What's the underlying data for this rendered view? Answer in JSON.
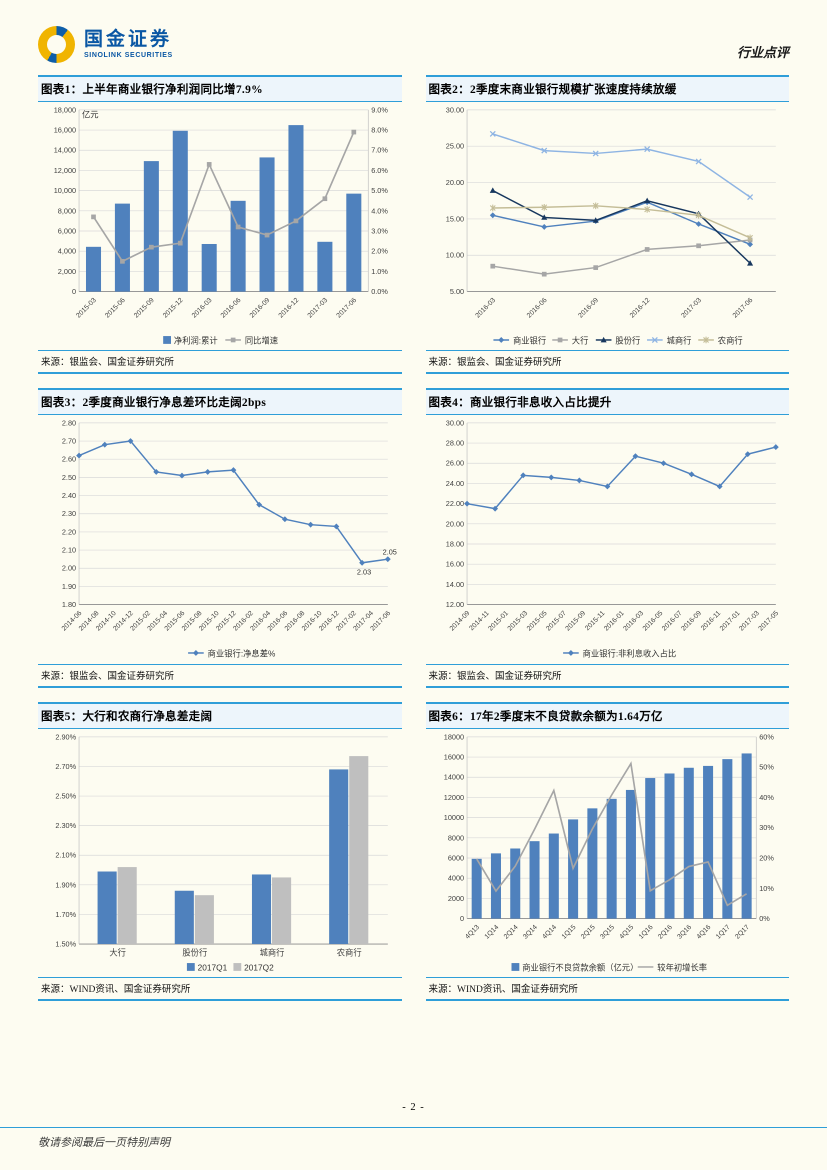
{
  "page": {
    "page_number": "- 2 -",
    "footer_note": "敬请参阅最后一页特别声明",
    "background": "#fdfcf1",
    "accent_blue": "#2f9ed8"
  },
  "header": {
    "brand_cn": "国金证券",
    "brand_en": "SINOLINK SECURITIES",
    "doc_type": "行业点评",
    "brand_color": "#0a57a4",
    "logo_gold": "#f0b400",
    "logo_blue": "#0e5ea8"
  },
  "chart_data": [
    {
      "type": "bar+line",
      "title": "图表1：上半年商业银行净利润同比增7.9%",
      "source": "来源：银监会、国金证券研究所",
      "categories": [
        "2015-03",
        "2015-06",
        "2015-09",
        "2015-12",
        "2016-03",
        "2016-06",
        "2016-09",
        "2016-12",
        "2017-03",
        "2017-06"
      ],
      "bar": {
        "name": "净利润:累计",
        "values": [
          4436,
          8715,
          12925,
          15926,
          4716,
          8991,
          13290,
          16490,
          4933,
          9703
        ],
        "color": "#4f81bd"
      },
      "line": {
        "name": "同比增速",
        "values": [
          3.7,
          1.5,
          2.2,
          2.4,
          6.3,
          3.2,
          2.8,
          3.5,
          4.6,
          7.9
        ],
        "color": "#a6a6a6",
        "marker": "square",
        "axis": "right"
      },
      "y_left": {
        "min": 0,
        "max": 18000,
        "step": 2000,
        "format": "comma",
        "title": "亿元"
      },
      "y_right": {
        "min": 0,
        "max": 9,
        "step": 1,
        "format": "pct1"
      },
      "legend_position": "bottom",
      "grid": true
    },
    {
      "type": "line-multi",
      "title": "图表2：2季度末商业银行规模扩张速度持续放缓",
      "source": "来源：银监会、国金证券研究所",
      "categories": [
        "2016-03",
        "2016-06",
        "2016-09",
        "2016-12",
        "2017-03",
        "2017-06"
      ],
      "series": [
        {
          "name": "商业银行",
          "values": [
            15.5,
            13.9,
            14.7,
            17.3,
            14.3,
            11.5
          ],
          "color": "#4f81bd",
          "marker": "diamond"
        },
        {
          "name": "大行",
          "values": [
            8.5,
            7.4,
            8.3,
            10.8,
            11.3,
            12.1
          ],
          "color": "#a6a6a6",
          "marker": "square"
        },
        {
          "name": "股份行",
          "values": [
            18.9,
            15.2,
            14.8,
            17.5,
            15.7,
            8.9
          ],
          "color": "#17375e",
          "marker": "triangle"
        },
        {
          "name": "城商行",
          "values": [
            26.7,
            24.4,
            24.0,
            24.6,
            22.9,
            18.0
          ],
          "color": "#8eb4e3",
          "marker": "x"
        },
        {
          "name": "农商行",
          "values": [
            16.5,
            16.6,
            16.8,
            16.3,
            15.5,
            12.4
          ],
          "color": "#c4bd97",
          "marker": "star"
        }
      ],
      "y_left": {
        "min": 5,
        "max": 30,
        "step": 5,
        "format": "2dp"
      },
      "legend_position": "bottom",
      "grid": true
    },
    {
      "type": "line",
      "title": "图表3：2季度商业银行净息差环比走阔2bps",
      "source": "来源：银监会、国金证券研究所",
      "x_mode": "edge",
      "x_ticks": [
        "2014-06",
        "2014-08",
        "2014-10",
        "2014-12",
        "2015-02",
        "2015-04",
        "2015-06",
        "2015-08",
        "2015-10",
        "2015-12",
        "2016-02",
        "2016-04",
        "2016-06",
        "2016-08",
        "2016-10",
        "2016-12",
        "2017-02",
        "2017-04",
        "2017-06"
      ],
      "series": [
        {
          "name": "商业银行:净息差%",
          "values": [
            2.62,
            2.68,
            2.7,
            2.53,
            2.51,
            2.53,
            2.54,
            2.35,
            2.27,
            2.24,
            2.23,
            2.03,
            2.05
          ],
          "color": "#4f81bd",
          "marker": "diamond"
        }
      ],
      "annotations": [
        {
          "index": 11,
          "text": "2.03",
          "position": "below"
        },
        {
          "index": 12,
          "text": "2.05",
          "position": "above"
        }
      ],
      "y_left": {
        "min": 1.8,
        "max": 2.8,
        "step": 0.1,
        "format": "2dp"
      },
      "legend_position": "bottom",
      "grid": true
    },
    {
      "type": "line",
      "title": "图表4：商业银行非息收入占比提升",
      "source": "来源：银监会、国金证券研究所",
      "x_mode": "edge",
      "x_ticks": [
        "2014-09",
        "2014-11",
        "2015-01",
        "2015-03",
        "2015-05",
        "2015-07",
        "2015-09",
        "2015-11",
        "2016-01",
        "2016-03",
        "2016-05",
        "2016-07",
        "2016-09",
        "2016-11",
        "2017-01",
        "2017-03",
        "2017-05"
      ],
      "series": [
        {
          "name": "商业银行:非利息收入占比",
          "values": [
            22.0,
            21.5,
            24.8,
            24.6,
            24.3,
            23.7,
            26.7,
            26.0,
            24.9,
            23.7,
            26.9,
            27.6
          ],
          "color": "#4f81bd",
          "marker": "diamond"
        }
      ],
      "y_left": {
        "min": 12,
        "max": 30,
        "step": 2,
        "format": "2dp"
      },
      "legend_position": "bottom",
      "grid": true
    },
    {
      "type": "grouped-bar",
      "title": "图表5：大行和农商行净息差走阔",
      "source": "来源：WIND资讯、国金证券研究所",
      "x_rotate": false,
      "categories": [
        "大行",
        "股份行",
        "城商行",
        "农商行"
      ],
      "bar_series": [
        {
          "name": "2017Q1",
          "values": [
            1.99,
            1.86,
            1.97,
            2.68
          ],
          "color": "#4f81bd"
        },
        {
          "name": "2017Q2",
          "values": [
            2.02,
            1.83,
            1.95,
            2.77
          ],
          "color": "#bfbfbf"
        }
      ],
      "y_left": {
        "min": 1.5,
        "max": 2.9,
        "step": 0.2,
        "format": "pct2"
      },
      "legend_position": "bottom",
      "grid": true
    },
    {
      "type": "bar+line",
      "title": "图表6：17年2季度末不良贷款余额为1.64万亿",
      "source": "来源：WIND资讯、国金证券研究所",
      "categories": [
        "4Q13",
        "1Q14",
        "2Q14",
        "3Q14",
        "4Q14",
        "1Q15",
        "2Q15",
        "3Q15",
        "4Q15",
        "1Q16",
        "2Q16",
        "3Q16",
        "4Q16",
        "1Q17",
        "2Q17"
      ],
      "bar": {
        "name": "商业银行不良贷款余额（亿元）",
        "values": [
          5921,
          6461,
          6944,
          7669,
          8426,
          9825,
          10919,
          11863,
          12744,
          13921,
          14373,
          14939,
          15123,
          15795,
          16358
        ],
        "color": "#4f81bd"
      },
      "line": {
        "name": "较年初增长率",
        "values": [
          19.7,
          9.1,
          17.3,
          29.5,
          42.3,
          16.6,
          29.6,
          40.8,
          51.2,
          9.2,
          12.8,
          17.2,
          18.7,
          4.4,
          8.2
        ],
        "color": "#a6a6a6",
        "marker": "none",
        "axis": "right"
      },
      "y_left": {
        "min": 0,
        "max": 18000,
        "step": 2000,
        "format": "0dp"
      },
      "y_right": {
        "min": 0,
        "max": 60,
        "step": 10,
        "format": "pct0"
      },
      "legend_position": "bottom",
      "grid": true
    }
  ]
}
